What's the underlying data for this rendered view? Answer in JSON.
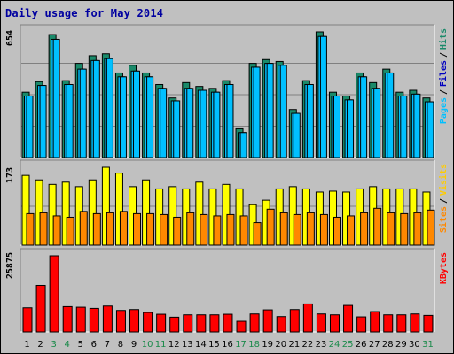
{
  "title": "Daily usage for May 2014",
  "colors": {
    "hits": "#1a8a6a",
    "files": "#00c0ff",
    "pages": "#00c0ff",
    "visits": "#ffff00",
    "sites": "#ff8800",
    "kbytes": "#ff0000",
    "weekday_label": "#000000",
    "weekend_label": "#1a8a4a",
    "legend_hits": "#1a8a6a",
    "legend_files": "#0000c0",
    "legend_pages": "#00c0ff",
    "legend_visits": "#ffcc00",
    "legend_sites": "#ff8800",
    "legend_kbytes": "#ff0000"
  },
  "chart_data": {
    "type": "bar",
    "categories": [
      "1",
      "2",
      "3",
      "4",
      "5",
      "6",
      "7",
      "8",
      "9",
      "10",
      "11",
      "12",
      "13",
      "14",
      "15",
      "16",
      "17",
      "18",
      "19",
      "20",
      "21",
      "22",
      "23",
      "24",
      "25",
      "26",
      "27",
      "28",
      "29",
      "30",
      "31"
    ],
    "weekend_days": [
      "3",
      "4",
      "10",
      "11",
      "17",
      "18",
      "24",
      "25",
      "31"
    ],
    "panels": [
      {
        "name": "hits-files-pages",
        "max_label": "654",
        "ylim": [
          0,
          654
        ],
        "legend": [
          "Pages",
          "Files",
          "Hits"
        ],
        "series": [
          {
            "name": "Hits",
            "values": [
              340,
              395,
              640,
              400,
              490,
              530,
              540,
              440,
              480,
              440,
              380,
              310,
              390,
              370,
              360,
              400,
              150,
              490,
              510,
              500,
              250,
              400,
              654,
              340,
              320,
              440,
              390,
              460,
              340,
              350,
              310
            ]
          },
          {
            "name": "Files",
            "values": [
              320,
              375,
              615,
              380,
              460,
              505,
              515,
              420,
              450,
              420,
              360,
              295,
              360,
              350,
              340,
              380,
              130,
              470,
              490,
              480,
              230,
              380,
              630,
              320,
              300,
              420,
              360,
              440,
              320,
              330,
              290
            ]
          },
          {
            "name": "Pages",
            "values": [
              320,
              375,
              615,
              380,
              460,
              505,
              515,
              420,
              450,
              420,
              360,
              295,
              360,
              350,
              340,
              380,
              130,
              470,
              490,
              480,
              230,
              380,
              630,
              320,
              300,
              420,
              360,
              440,
              320,
              330,
              290
            ]
          }
        ]
      },
      {
        "name": "visits-sites",
        "max_label": "173",
        "ylim": [
          0,
          173
        ],
        "legend": [
          "Sites",
          "Visits"
        ],
        "series": [
          {
            "name": "Visits",
            "values": [
              155,
              145,
              135,
              140,
              130,
              145,
              173,
              160,
              130,
              145,
              125,
              130,
              125,
              140,
              125,
              135,
              125,
              90,
              100,
              125,
              130,
              125,
              118,
              120,
              118,
              125,
              130,
              125,
              125,
              125,
              118
            ]
          },
          {
            "name": "Sites",
            "values": [
              70,
              72,
              65,
              62,
              75,
              70,
              72,
              75,
              70,
              70,
              68,
              62,
              72,
              68,
              65,
              68,
              65,
              50,
              80,
              72,
              68,
              72,
              68,
              62,
              65,
              72,
              82,
              72,
              70,
              72,
              78
            ]
          }
        ]
      },
      {
        "name": "kbytes",
        "max_label": "25875",
        "ylim": [
          0,
          25875
        ],
        "legend": [
          "KBytes"
        ],
        "series": [
          {
            "name": "KBytes",
            "values": [
              8200,
              15800,
              25875,
              8600,
              8400,
              8000,
              8800,
              7300,
              7600,
              6600,
              6000,
              5000,
              5800,
              5800,
              5800,
              6000,
              3600,
              6100,
              7500,
              5200,
              7600,
              9500,
              6100,
              5800,
              9000,
              5100,
              6900,
              5800,
              5800,
              6100,
              5600
            ]
          }
        ]
      }
    ]
  }
}
